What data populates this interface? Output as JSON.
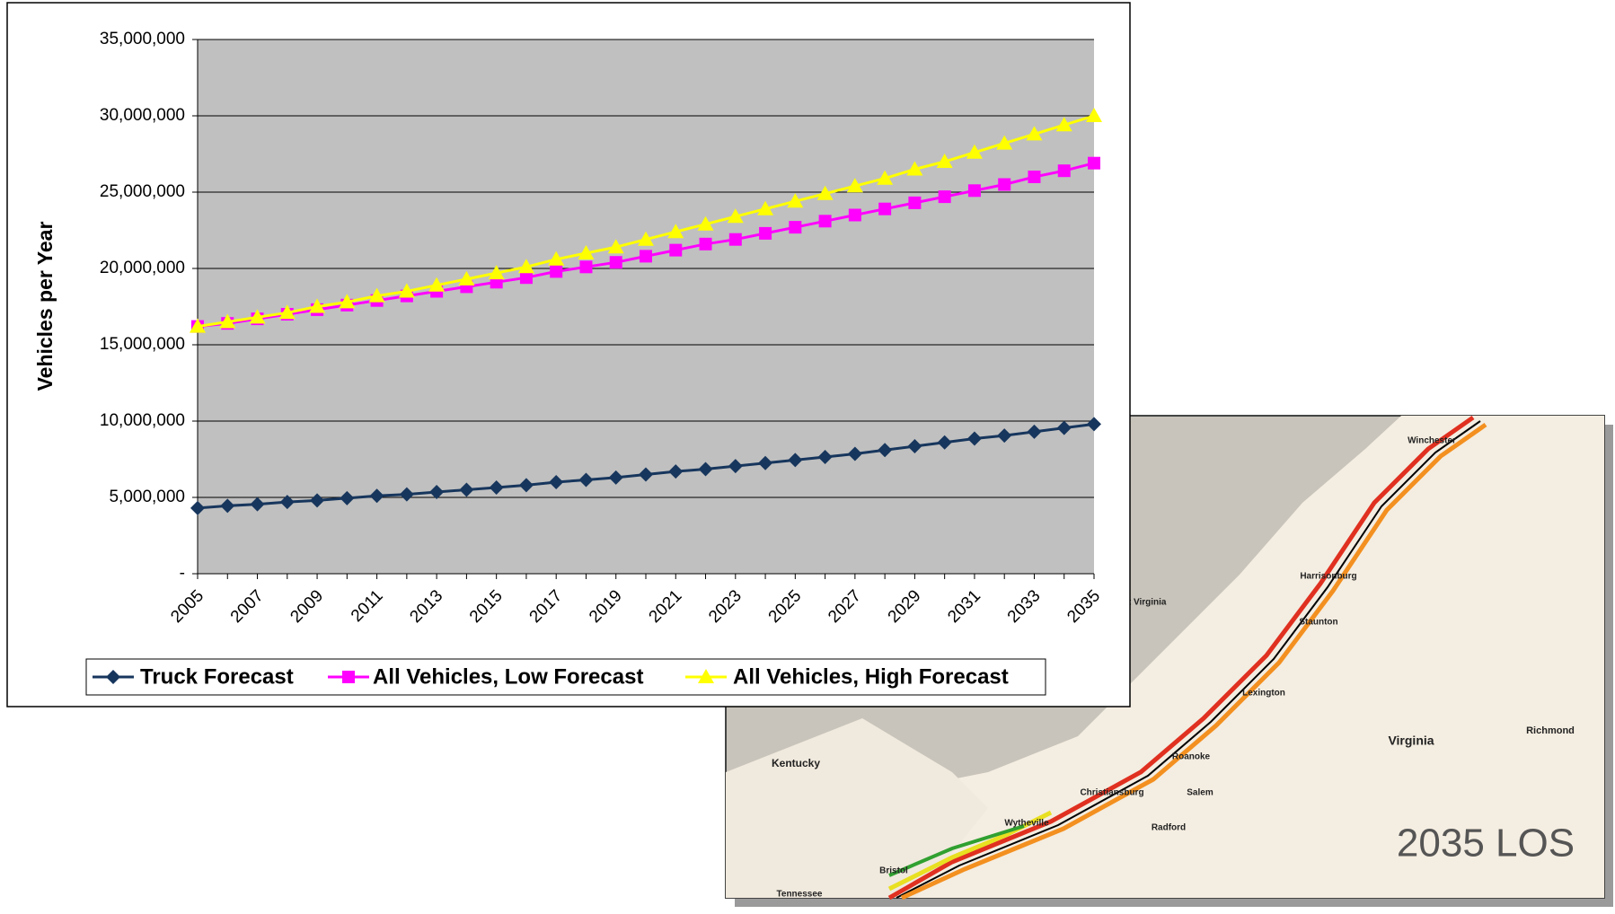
{
  "chart_data": {
    "type": "line",
    "y_label": "Vehicles per Year",
    "categories": [
      "2005",
      null,
      "2007",
      null,
      "2009",
      null,
      "2011",
      null,
      "2013",
      null,
      "2015",
      null,
      "2017",
      null,
      "2019",
      null,
      "2021",
      null,
      "2023",
      null,
      "2025",
      null,
      "2027",
      null,
      "2029",
      null,
      "2031",
      null,
      "2033",
      null,
      "2035"
    ],
    "series": [
      {
        "name": "Truck Forecast",
        "color": "#17365d",
        "marker": "diamond",
        "values": [
          4300000,
          4450000,
          4550000,
          4700000,
          4800000,
          4950000,
          5100000,
          5200000,
          5350000,
          5500000,
          5650000,
          5800000,
          6000000,
          6150000,
          6300000,
          6500000,
          6700000,
          6850000,
          7050000,
          7250000,
          7450000,
          7650000,
          7850000,
          8100000,
          8350000,
          8600000,
          8850000,
          9050000,
          9300000,
          9550000,
          9800000
        ]
      },
      {
        "name": "All Vehicles, Low Forecast",
        "color": "#ff00ff",
        "marker": "square",
        "values": [
          16200000,
          16400000,
          16700000,
          17000000,
          17300000,
          17600000,
          17900000,
          18200000,
          18500000,
          18800000,
          19100000,
          19400000,
          19800000,
          20100000,
          20400000,
          20800000,
          21200000,
          21600000,
          21900000,
          22300000,
          22700000,
          23100000,
          23500000,
          23900000,
          24300000,
          24700000,
          25100000,
          25500000,
          26000000,
          26400000,
          26900000
        ]
      },
      {
        "name": "All Vehicles, High Forecast",
        "color": "#ffff00",
        "marker": "triangle",
        "values": [
          16200000,
          16500000,
          16800000,
          17100000,
          17500000,
          17800000,
          18200000,
          18500000,
          18900000,
          19300000,
          19700000,
          20100000,
          20600000,
          21000000,
          21400000,
          21900000,
          22400000,
          22900000,
          23400000,
          23900000,
          24400000,
          24900000,
          25400000,
          25900000,
          26500000,
          27000000,
          27600000,
          28200000,
          28800000,
          29400000,
          30000000
        ]
      }
    ],
    "ylim": [
      0,
      35000000
    ],
    "yticks": [
      {
        "value": 0,
        "label": "-"
      },
      {
        "value": 5000000,
        "label": "5,000,000"
      },
      {
        "value": 10000000,
        "label": "10,000,000"
      },
      {
        "value": 15000000,
        "label": "15,000,000"
      },
      {
        "value": 20000000,
        "label": "20,000,000"
      },
      {
        "value": 25000000,
        "label": "25,000,000"
      },
      {
        "value": 30000000,
        "label": "30,000,000"
      },
      {
        "value": 35000000,
        "label": "35,000,000"
      }
    ],
    "grid": true,
    "plot_background": "#c0c0c0",
    "legend": "bottom"
  },
  "map": {
    "labels": [
      "West Virginia",
      "Winchester",
      "Harrisonburg",
      "Staunton",
      "Lexington",
      "Roanoke",
      "Salem",
      "Christiansburg",
      "Radford",
      "Wytheville",
      "Bristol",
      "Kentucky",
      "Virginia",
      "Richmond",
      "Tennessee"
    ],
    "caption": "2035 LOS"
  }
}
